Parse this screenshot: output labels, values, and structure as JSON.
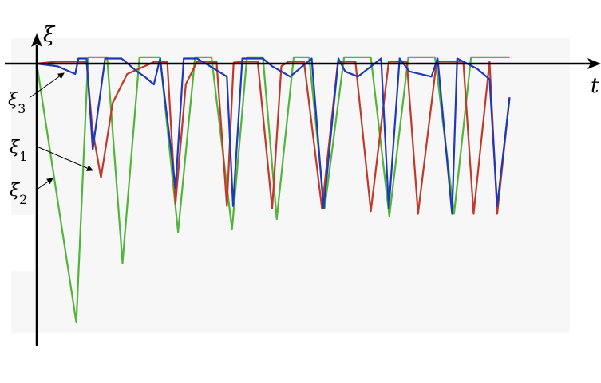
{
  "chart_data": {
    "type": "line",
    "title": "",
    "xlabel": "t",
    "ylabel": "ξ",
    "grid": false,
    "legend": "none",
    "xlim": [
      0,
      100
    ],
    "ylim": [
      -100,
      3
    ],
    "annotations": [
      {
        "text": "ξ3",
        "points_to": "ξ3"
      },
      {
        "text": "ξ1",
        "points_to": "ξ1"
      },
      {
        "text": "ξ2",
        "points_to": "ξ2"
      }
    ],
    "series": [
      {
        "name": "ξ1",
        "color": "#c0392b",
        "x": [
          0,
          4,
          7.5,
          9.7,
          10.8,
          12.5,
          14.8,
          17.6,
          21,
          23,
          25.4,
          27,
          29,
          31.2,
          33.1,
          35,
          37,
          38.3,
          40,
          43,
          45.8,
          47.6,
          49,
          50.2,
          52,
          55.5,
          58.6,
          60,
          62,
          65,
          68.5,
          70.6,
          72,
          74.2,
          77.8,
          81,
          83,
          85,
          88.1,
          89.6,
          92
        ],
        "y": [
          0,
          0.8,
          0.8,
          0.6,
          -25,
          -44,
          -15,
          -4,
          -1,
          0.8,
          0.6,
          -54,
          -8,
          0.8,
          0.8,
          0.6,
          -55,
          0.4,
          0.8,
          0.8,
          -56,
          -1,
          0.8,
          0.8,
          0.8,
          -56,
          0.8,
          0.8,
          0.8,
          -57,
          0.8,
          0.8,
          0.8,
          -58,
          0.8,
          0.8,
          0.8,
          -58,
          0.8,
          -58,
          -13
        ]
      },
      {
        "name": "ξ2",
        "color": "#52b53a",
        "x": [
          0,
          7.7,
          10,
          13.7,
          16.7,
          20,
          24,
          27.5,
          30.8,
          34,
          38,
          40.9,
          44,
          46.7,
          50,
          53,
          56,
          59.8,
          62.5,
          65,
          68.6,
          72.3,
          75.2,
          77.5,
          81.2,
          84.5,
          86.8,
          88,
          92
        ],
        "y": [
          0,
          -100,
          2.5,
          2.5,
          -77,
          2.5,
          2.5,
          -65,
          2.5,
          2.5,
          -64,
          2.5,
          2.5,
          -60,
          2.5,
          2.5,
          -56,
          2.5,
          2.5,
          2.5,
          -59,
          2.5,
          2.5,
          2.5,
          -58,
          2.5,
          2.5,
          2.5,
          2.5
        ]
      },
      {
        "name": "ξ3",
        "color": "#2039b8",
        "x": [
          0,
          4,
          7.5,
          8.1,
          9.7,
          10.9,
          13.3,
          16.5,
          19.5,
          21,
          22.8,
          24,
          27,
          28.6,
          31.2,
          35.4,
          37,
          38.2,
          40,
          44,
          45.8,
          47.6,
          49.3,
          53.5,
          55.8,
          58.7,
          60,
          62.5,
          67,
          68.5,
          70.6,
          72.5,
          76.8,
          78,
          80.8,
          81.8,
          85.7,
          88.1,
          89.6,
          92
        ],
        "y": [
          0,
          -1,
          -4,
          2,
          2,
          -33,
          2,
          2,
          -3,
          -5,
          -8,
          2,
          -48,
          2,
          2,
          -3,
          -5,
          -55,
          2,
          2,
          -1,
          -3,
          -5,
          2,
          -56,
          2,
          -3,
          -5,
          2,
          -56,
          2,
          -3,
          -5,
          2,
          -58,
          2,
          -2,
          -6,
          -55,
          -13
        ]
      }
    ]
  }
}
